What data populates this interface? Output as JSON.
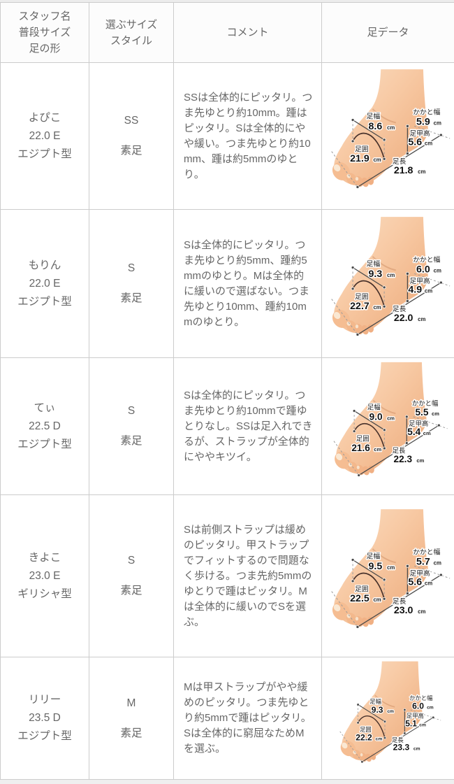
{
  "header": {
    "col_staff": [
      "スタッフ名",
      "普段サイズ",
      "足の形"
    ],
    "col_size": [
      "選ぶサイズ",
      "スタイル"
    ],
    "col_comment": "コメント",
    "col_foot": "足データ"
  },
  "foot_diagram_labels": {
    "foot_width": "足幅",
    "heel_width": "かかと幅",
    "instep_height": "足甲高",
    "foot_circumference": "足囲",
    "foot_length": "足長",
    "unit": "cm"
  },
  "rows": [
    {
      "staff_name": "よぴこ",
      "usual_size": "22.0 E",
      "foot_shape": "エジプト型",
      "chosen_size": "SS",
      "style": "素足",
      "comment": "SSは全体的にピッタリ。つま先ゆとり約10mm。踵はピッタリ。Sは全体的にやや緩い。つま先ゆとり約10mm、踵は約5mmのゆとり。",
      "foot_data": {
        "foot_width_cm": "8.6",
        "heel_width_cm": "5.9",
        "instep_height_cm": "5.6",
        "foot_circumference_cm": "21.9",
        "foot_length_cm": "21.8"
      }
    },
    {
      "staff_name": "もりん",
      "usual_size": "22.0 E",
      "foot_shape": "エジプト型",
      "chosen_size": "S",
      "style": "素足",
      "comment": "Sは全体的にピッタリ。つま先ゆとり約5mm、踵約5mmのゆとり。Mは全体的に緩いので選ばない。つま先ゆとり10mm、踵約10mmのゆとり。",
      "foot_data": {
        "foot_width_cm": "9.3",
        "heel_width_cm": "6.0",
        "instep_height_cm": "4.9",
        "foot_circumference_cm": "22.7",
        "foot_length_cm": "22.0"
      }
    },
    {
      "staff_name": "てぃ",
      "usual_size": "22.5 D",
      "foot_shape": "エジプト型",
      "chosen_size": "S",
      "style": "素足",
      "comment": "Sは全体的にピッタリ。つま先ゆとり約10mmで踵ゆとりなし。SSは足入れできるが、ストラップが全体的にややキツイ。",
      "foot_data": {
        "foot_width_cm": "9.0",
        "heel_width_cm": "5.5",
        "instep_height_cm": "5.4",
        "foot_circumference_cm": "21.6",
        "foot_length_cm": "22.3"
      }
    },
    {
      "staff_name": "きよこ",
      "usual_size": "23.0 E",
      "foot_shape": "ギリシャ型",
      "chosen_size": "S",
      "style": "素足",
      "comment": "Sは前側ストラップは緩めのピッタリ。甲ストラップでフィットするので問題なく歩ける。つま先約5mmのゆとりで踵はピッタリ。Mは全体的に緩いのでSを選ぶ。",
      "foot_data": {
        "foot_width_cm": "9.5",
        "heel_width_cm": "5.7",
        "instep_height_cm": "5.6",
        "foot_circumference_cm": "22.5",
        "foot_length_cm": "23.0"
      }
    },
    {
      "staff_name": "リリー",
      "usual_size": "23.5 D",
      "foot_shape": "エジプト型",
      "chosen_size": "M",
      "style": "素足",
      "comment": "Mは甲ストラップがやや緩めのピッタリ。つま先ゆとり約5mmで踵はピッタリ。Sは全体的に窮屈なためMを選ぶ。",
      "foot_data": {
        "foot_width_cm": "9.3",
        "heel_width_cm": "6.0",
        "instep_height_cm": "5.1",
        "foot_circumference_cm": "22.2",
        "foot_length_cm": "23.3"
      }
    }
  ],
  "colors": {
    "border": "#cccccc",
    "text": "#666666",
    "header_bg": "#fcfcfc",
    "annotation_line": "#4a4a4a",
    "annotation_number": "#111111",
    "circumference_arc": "#46302a",
    "skin_light": "#fbdfc4",
    "skin_dark": "#eca878"
  }
}
